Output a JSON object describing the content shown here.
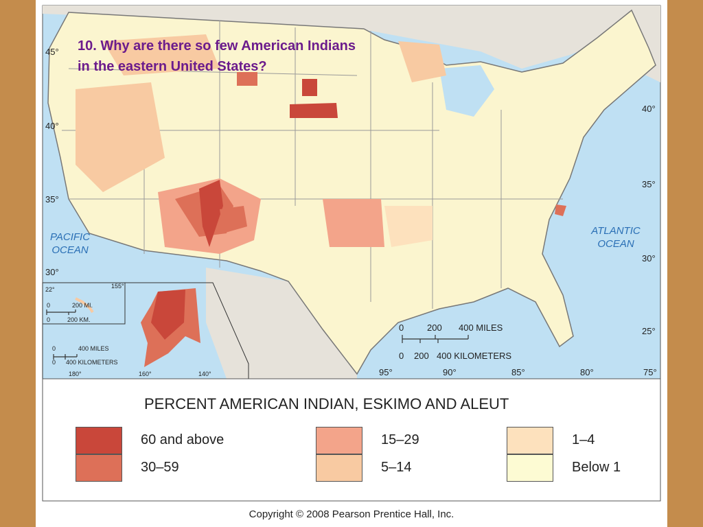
{
  "question": "10. Why are there so few American Indians in the eastern United States?",
  "map": {
    "oceans": [
      "PACIFIC OCEAN",
      "ATLANTIC OCEAN"
    ],
    "latitudes_left": [
      "45°",
      "40°",
      "35°",
      "30°"
    ],
    "latitudes_right": [
      "40°",
      "35°",
      "30°",
      "25°"
    ],
    "longitudes_bottom": [
      "95°",
      "90°",
      "85°",
      "80°",
      "75°"
    ],
    "scale": {
      "miles": [
        "0",
        "200",
        "400 MILES"
      ],
      "kilometers": [
        "0",
        "200",
        "400 KILOMETERS"
      ]
    },
    "hawaii_inset": {
      "latitude": "22°",
      "longitude": "155°",
      "miles": [
        "0",
        "200 MI."
      ],
      "kilometers": [
        "0",
        "200 KM."
      ]
    },
    "alaska_inset": {
      "miles": [
        "0",
        "400 MILES"
      ],
      "kilometers": [
        "0",
        "400 KILOMETERS"
      ],
      "longitudes": [
        "180°",
        "160°",
        "140°"
      ]
    }
  },
  "legend": {
    "title": "PERCENT AMERICAN INDIAN, ESKIMO AND ALEUT",
    "items": [
      {
        "label": "60 and above",
        "color": "#c9473a"
      },
      {
        "label": "30–59",
        "color": "#dd7058"
      },
      {
        "label": "15–29",
        "color": "#f3a48a"
      },
      {
        "label": "5–14",
        "color": "#f8caa2"
      },
      {
        "label": "1–4",
        "color": "#fde1bd"
      },
      {
        "label": "Below 1",
        "color": "#fdfbd3"
      }
    ]
  },
  "copyright": "Copyright © 2008 Pearson Prentice Hall, Inc."
}
